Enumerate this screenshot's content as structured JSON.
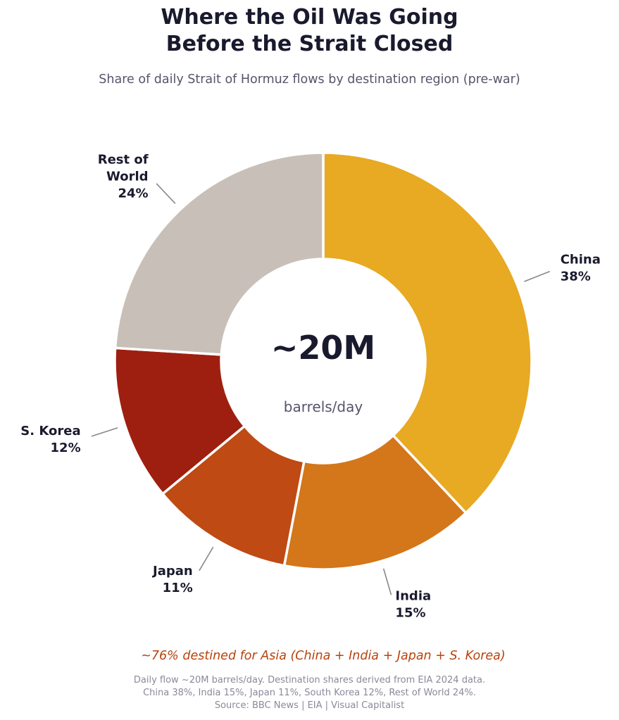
{
  "title_lines": [
    "Where the Oil Was Going",
    "Before the Strait Closed"
  ],
  "subtitle": "Share of daily Strait of Hormuz flows by destination region (pre-war)",
  "center": {
    "value": "~20M",
    "unit": "barrels/day"
  },
  "annotation": "~76% destined for Asia  (China + India + Japan + S. Korea)",
  "footnote_lines": [
    "Daily flow ~20M barrels/day. Destination shares derived from EIA 2024 data.",
    "China 38%, India 15%, Japan 11%, South Korea 12%, Rest of World 24%.",
    "Source: BBC News | EIA | Visual Capitalist"
  ],
  "colors": {
    "accent": "#b8420d"
  },
  "chart_data": {
    "type": "pie",
    "variant": "donut",
    "start_angle": "12 o'clock",
    "direction": "clockwise",
    "slices": [
      {
        "label_lines": [
          "China"
        ],
        "value": 38,
        "value_label": "38%",
        "color": "#e8a923"
      },
      {
        "label_lines": [
          "India"
        ],
        "value": 15,
        "value_label": "15%",
        "color": "#d4761a"
      },
      {
        "label_lines": [
          "Japan"
        ],
        "value": 11,
        "value_label": "11%",
        "color": "#bf4a14"
      },
      {
        "label_lines": [
          "S. Korea"
        ],
        "value": 12,
        "value_label": "12%",
        "color": "#9e1f10"
      },
      {
        "label_lines": [
          "Rest of",
          "World"
        ],
        "value": 24,
        "value_label": "24%",
        "color": "#c8c0b8"
      }
    ]
  }
}
